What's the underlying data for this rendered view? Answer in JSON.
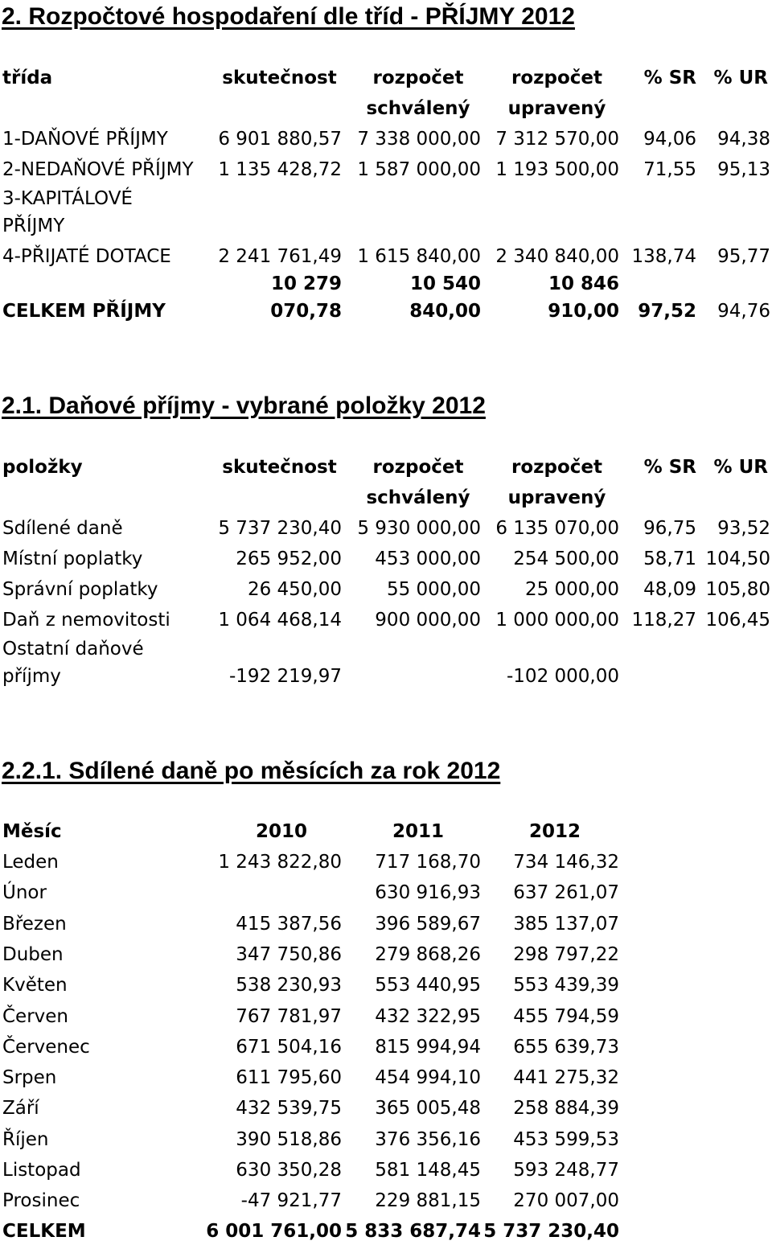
{
  "section1": {
    "heading": "2. Rozpočtové hospodaření dle tříd - PŘÍJMY 2012",
    "headers": [
      "třída",
      "skutečnost",
      "rozpočet",
      "rozpočet",
      "% SR",
      "% UR"
    ],
    "subheaders": [
      "schválený",
      "upravený"
    ],
    "rows": [
      {
        "label": "1-DAŇOVÉ PŘÍJMY",
        "c1": "6 901 880,57",
        "c2": "7 338 000,00",
        "c3": "7 312 570,00",
        "c4": "94,06",
        "c5": "94,38"
      },
      {
        "label": "2-NEDAŇOVÉ PŘÍJMY",
        "c1": "1 135 428,72",
        "c2": "1 587 000,00",
        "c3": "1 193 500,00",
        "c4": "71,55",
        "c5": "95,13"
      },
      {
        "label_line1": "3-KAPITÁLOVÉ",
        "label_line2": "PŘÍJMY"
      },
      {
        "label": "4-PŘIJATÉ DOTACE",
        "c1": "2 241 761,49",
        "c2": "1 615 840,00",
        "c3": "2 340 840,00",
        "c4": "138,74",
        "c5": "95,77"
      }
    ],
    "total": {
      "label": "CELKEM PŘÍJMY",
      "c1_line1": "10 279",
      "c1_line2": "070,78",
      "c2_line1": "10 540",
      "c2_line2": "840,00",
      "c3_line1": "10 846",
      "c3_line2": "910,00",
      "c4": "97,52",
      "c5": "94,76"
    }
  },
  "section2": {
    "heading": "2.1. Daňové příjmy - vybrané položky 2012",
    "headers": [
      "položky",
      "skutečnost",
      "rozpočet",
      "rozpočet",
      "% SR",
      "% UR"
    ],
    "subheaders": [
      "schválený",
      "upravený"
    ],
    "rows": [
      {
        "label": "Sdílené daně",
        "c1": "5 737 230,40",
        "c2": "5 930 000,00",
        "c3": "6 135 070,00",
        "c4": "96,75",
        "c5": "93,52"
      },
      {
        "label": "Místní poplatky",
        "c1": "265 952,00",
        "c2": "453 000,00",
        "c3": "254 500,00",
        "c4": "58,71",
        "c5": "104,50"
      },
      {
        "label": "Správní poplatky",
        "c1": "26 450,00",
        "c2": "55 000,00",
        "c3": "25 000,00",
        "c4": "48,09",
        "c5": "105,80"
      },
      {
        "label": "Daň z nemovitosti",
        "c1": "1 064 468,14",
        "c2": "900 000,00",
        "c3": "1 000 000,00",
        "c4": "118,27",
        "c5": "106,45"
      },
      {
        "label_line1": "Ostatní daňové",
        "label_line2": "příjmy",
        "c1": "-192 219,97",
        "c3": "-102 000,00"
      }
    ]
  },
  "section3": {
    "heading": "2.2.1. Sdílené daně po měsících za rok 2012",
    "headers": [
      "Měsíc",
      "2010",
      "2011",
      "2012"
    ],
    "rows": [
      {
        "label": "Leden",
        "y2010": "1 243 822,80",
        "y2011": "717 168,70",
        "y2012": "734 146,32"
      },
      {
        "label": "Únor",
        "y2010": "",
        "y2011": "630 916,93",
        "y2012": "637 261,07"
      },
      {
        "label": "Březen",
        "y2010": "415 387,56",
        "y2011": "396 589,67",
        "y2012": "385 137,07"
      },
      {
        "label": "Duben",
        "y2010": "347 750,86",
        "y2011": "279 868,26",
        "y2012": "298 797,22"
      },
      {
        "label": "Květen",
        "y2010": "538 230,93",
        "y2011": "553 440,95",
        "y2012": "553 439,39"
      },
      {
        "label": "Červen",
        "y2010": "767 781,97",
        "y2011": "432 322,95",
        "y2012": "455 794,59"
      },
      {
        "label": "Červenec",
        "y2010": "671 504,16",
        "y2011": "815 994,94",
        "y2012": "655 639,73"
      },
      {
        "label": "Srpen",
        "y2010": "611 795,60",
        "y2011": "454 994,10",
        "y2012": "441 275,32"
      },
      {
        "label": "Září",
        "y2010": "432 539,75",
        "y2011": "365 005,48",
        "y2012": "258 884,39"
      },
      {
        "label": "Říjen",
        "y2010": "390 518,86",
        "y2011": "376 356,16",
        "y2012": "453 599,53"
      },
      {
        "label": "Listopad",
        "y2010": "630 350,28",
        "y2011": "581 148,45",
        "y2012": "593 248,77"
      },
      {
        "label": "Prosinec",
        "y2010": "-47 921,77",
        "y2011": "229 881,15",
        "y2012": "270 007,00"
      }
    ],
    "total": {
      "label": "CELKEM",
      "y2010": "6 001 761,00",
      "y2011": "5 833 687,74",
      "y2012": "5 737 230,40"
    }
  }
}
